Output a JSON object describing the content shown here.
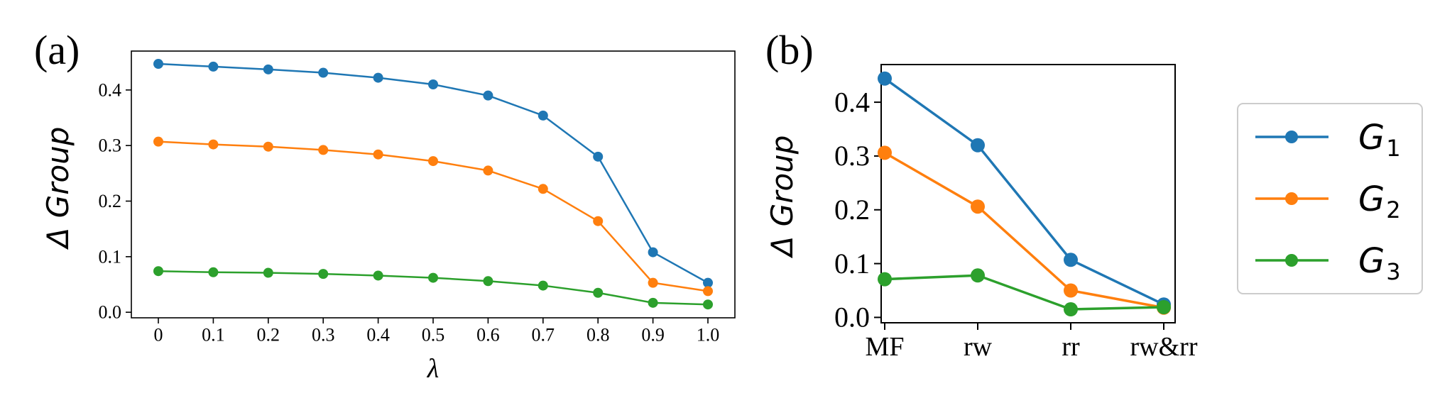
{
  "panels": [
    {
      "label": "(a)",
      "chart_data": {
        "type": "line",
        "x": [
          0,
          0.1,
          0.2,
          0.3,
          0.4,
          0.5,
          0.6,
          0.7,
          0.8,
          0.9,
          1.0
        ],
        "xtick_labels": [
          "0",
          "0.1",
          "0.2",
          "0.3",
          "0.4",
          "0.5",
          "0.6",
          "0.7",
          "0.8",
          "0.9",
          "1.0"
        ],
        "xlabel": "λ",
        "ylabel": "Δ Group",
        "ylim": [
          -0.01,
          0.47
        ],
        "yticks": [
          0.0,
          0.1,
          0.2,
          0.3,
          0.4
        ],
        "ytick_labels": [
          "0.0",
          "0.1",
          "0.2",
          "0.3",
          "0.4"
        ],
        "grid": false,
        "series": [
          {
            "name": "G1",
            "values": [
              0.447,
              0.442,
              0.437,
              0.431,
              0.422,
              0.41,
              0.39,
              0.354,
              0.28,
              0.108,
              0.053
            ]
          },
          {
            "name": "G2",
            "values": [
              0.307,
              0.302,
              0.298,
              0.292,
              0.284,
              0.272,
              0.255,
              0.222,
              0.164,
              0.053,
              0.038
            ]
          },
          {
            "name": "G3",
            "values": [
              0.074,
              0.072,
              0.071,
              0.069,
              0.066,
              0.062,
              0.056,
              0.048,
              0.035,
              0.017,
              0.014
            ]
          }
        ]
      }
    },
    {
      "label": "(b)",
      "chart_data": {
        "type": "line",
        "categories": [
          "MF",
          "rw",
          "rr",
          "rw&rr"
        ],
        "xlabel": "",
        "ylabel": "Δ Group",
        "ylim": [
          -0.01,
          0.47
        ],
        "yticks": [
          0.0,
          0.1,
          0.2,
          0.3,
          0.4
        ],
        "ytick_labels": [
          "0.0",
          "0.1",
          "0.2",
          "0.3",
          "0.4"
        ],
        "grid": false,
        "series": [
          {
            "name": "G1",
            "values": [
              0.444,
              0.32,
              0.107,
              0.024
            ]
          },
          {
            "name": "G2",
            "values": [
              0.306,
              0.206,
              0.05,
              0.018
            ]
          },
          {
            "name": "G3",
            "values": [
              0.071,
              0.078,
              0.015,
              0.019
            ]
          }
        ]
      }
    }
  ],
  "legend": {
    "placement": "right",
    "items": [
      {
        "series": "G1",
        "letter": "G",
        "sub": "1",
        "color": "#1f77b4"
      },
      {
        "series": "G2",
        "letter": "G",
        "sub": "2",
        "color": "#ff7f0e"
      },
      {
        "series": "G3",
        "letter": "G",
        "sub": "3",
        "color": "#2ca02c"
      }
    ]
  },
  "colors": {
    "G1": "#1f77b4",
    "G2": "#ff7f0e",
    "G3": "#2ca02c",
    "axis": "#000000"
  }
}
